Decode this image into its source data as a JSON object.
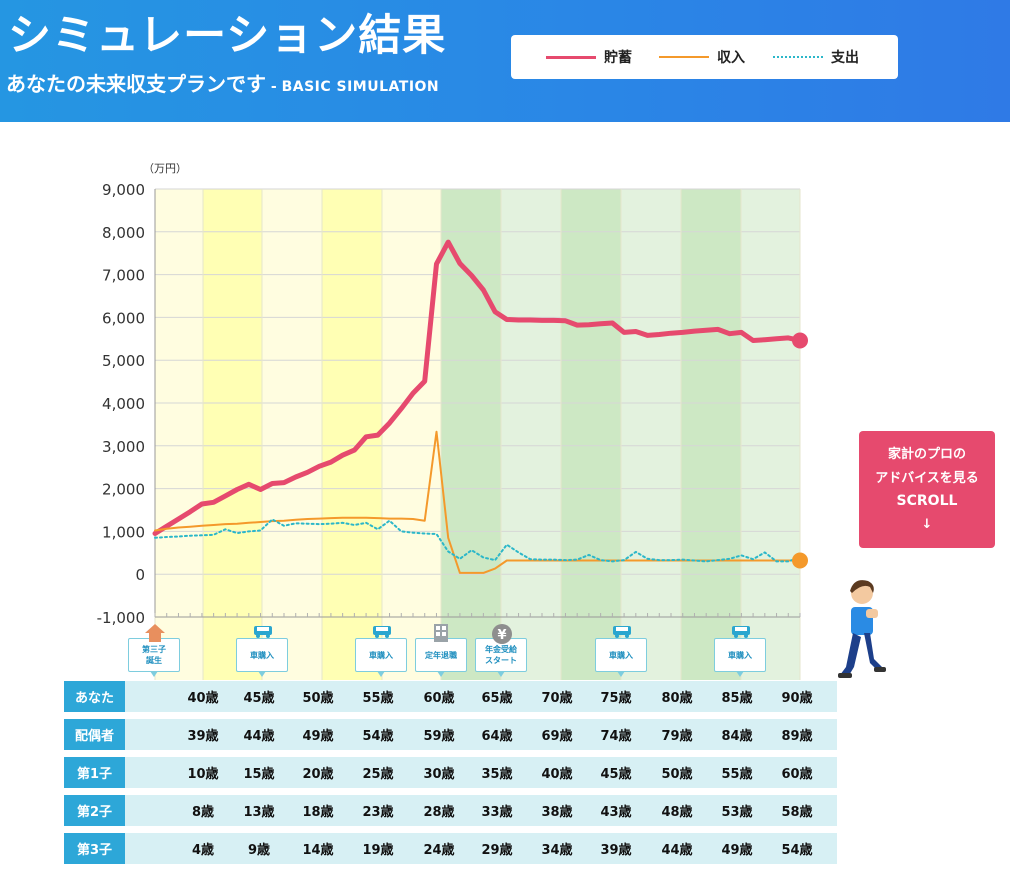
{
  "header": {
    "title": "シミュレーション結果",
    "subtitle": "あなたの未来収支プランです",
    "subtitle_sep": " - ",
    "subtitle_en": "BASIC SIMULATION",
    "background": "#2a8be4"
  },
  "legend": [
    {
      "label": "貯蓄",
      "color": "#e64a6e",
      "style": "solid"
    },
    {
      "label": "収入",
      "color": "#f4992b",
      "style": "solid"
    },
    {
      "label": "支出",
      "color": "#2bb7c9",
      "style": "dotted"
    }
  ],
  "advice_button": {
    "line1": "家計のプロの",
    "line2": "アドバイスを見る",
    "line3": "SCROLL",
    "line4": "↓",
    "color": "#e64a6e"
  },
  "chart_data": {
    "type": "line",
    "unit_label": "（万円）",
    "ylim": [
      -1000,
      9000
    ],
    "yticks": [
      "9,000",
      "8,000",
      "7,000",
      "6,000",
      "5,000",
      "4,000",
      "3,000",
      "2,000",
      "1,000",
      "0",
      "-1,000"
    ],
    "x_start_age": 40,
    "x_end_age": 90,
    "series": [
      {
        "name": "貯蓄",
        "color": "#e64a6e",
        "values": [
          950,
          1120,
          1290,
          1460,
          1640,
          1680,
          1830,
          1980,
          2100,
          1980,
          2120,
          2140,
          2270,
          2380,
          2520,
          2620,
          2780,
          2900,
          3210,
          3250,
          3530,
          3870,
          4230,
          4510,
          7250,
          7760,
          7260,
          6980,
          6640,
          6130,
          5950,
          5940,
          5940,
          5930,
          5930,
          5920,
          5820,
          5830,
          5850,
          5870,
          5650,
          5670,
          5580,
          5600,
          5630,
          5650,
          5680,
          5700,
          5720,
          5620,
          5650,
          5460,
          5480,
          5500,
          5520,
          5460
        ]
      },
      {
        "name": "収入",
        "color": "#f4992b",
        "values": [
          1020,
          1060,
          1090,
          1110,
          1130,
          1150,
          1170,
          1180,
          1200,
          1220,
          1240,
          1250,
          1270,
          1290,
          1300,
          1310,
          1320,
          1320,
          1320,
          1310,
          1300,
          1300,
          1290,
          1250,
          3330,
          850,
          30,
          30,
          30,
          130,
          320,
          320,
          320,
          320,
          320,
          320,
          320,
          320,
          320,
          320,
          320,
          320,
          320,
          320,
          320,
          320,
          320,
          320,
          320,
          320,
          320,
          320,
          320,
          320,
          320,
          320
        ]
      },
      {
        "name": "支出",
        "color": "#2bb7c9",
        "values": [
          850,
          870,
          880,
          900,
          910,
          920,
          1050,
          960,
          1000,
          1020,
          1280,
          1130,
          1190,
          1180,
          1170,
          1180,
          1200,
          1150,
          1200,
          1050,
          1250,
          1000,
          970,
          950,
          940,
          530,
          360,
          560,
          390,
          330,
          690,
          510,
          350,
          340,
          340,
          330,
          340,
          450,
          330,
          300,
          330,
          520,
          360,
          330,
          330,
          340,
          320,
          300,
          330,
          360,
          440,
          350,
          510,
          300,
          300,
          390
        ]
      }
    ],
    "bands": [
      {
        "color": "#fffde0"
      },
      {
        "color": "#ffffb4"
      },
      {
        "color": "#fffde0"
      },
      {
        "color": "#ffffb4"
      },
      {
        "color": "#fffde0"
      },
      {
        "color": "#cde8c4"
      },
      {
        "color": "#e3f2de"
      },
      {
        "color": "#cde8c4"
      },
      {
        "color": "#e3f2de"
      },
      {
        "color": "#cde8c4"
      },
      {
        "color": "#e3f2de"
      }
    ]
  },
  "events": [
    {
      "label1": "第三子",
      "label2": "誕生",
      "icon": "baby-icon"
    },
    {
      "label1": "車購入",
      "label2": "",
      "icon": "car-icon"
    },
    {
      "label1": "車購入",
      "label2": "",
      "icon": "car-icon"
    },
    {
      "label1": "定年退職",
      "label2": "",
      "icon": "building-icon"
    },
    {
      "label1": "年金受給",
      "label2": "スタート",
      "icon": "yen-icon"
    },
    {
      "label1": "車購入",
      "label2": "",
      "icon": "car-icon"
    },
    {
      "label1": "車購入",
      "label2": "",
      "icon": "car-icon"
    }
  ],
  "age_table": [
    {
      "label": "あなた",
      "ages": [
        "40歳",
        "45歳",
        "50歳",
        "55歳",
        "60歳",
        "65歳",
        "70歳",
        "75歳",
        "80歳",
        "85歳",
        "90歳"
      ]
    },
    {
      "label": "配偶者",
      "ages": [
        "39歳",
        "44歳",
        "49歳",
        "54歳",
        "59歳",
        "64歳",
        "69歳",
        "74歳",
        "79歳",
        "84歳",
        "89歳"
      ]
    },
    {
      "label": "第1子",
      "ages": [
        "10歳",
        "15歳",
        "20歳",
        "25歳",
        "30歳",
        "35歳",
        "40歳",
        "45歳",
        "50歳",
        "55歳",
        "60歳"
      ]
    },
    {
      "label": "第2子",
      "ages": [
        "8歳",
        "13歳",
        "18歳",
        "23歳",
        "28歳",
        "33歳",
        "38歳",
        "43歳",
        "48歳",
        "53歳",
        "58歳"
      ]
    },
    {
      "label": "第3子",
      "ages": [
        "4歳",
        "9歳",
        "14歳",
        "19歳",
        "24歳",
        "29歳",
        "34歳",
        "39歳",
        "44歳",
        "49歳",
        "54歳"
      ]
    }
  ]
}
